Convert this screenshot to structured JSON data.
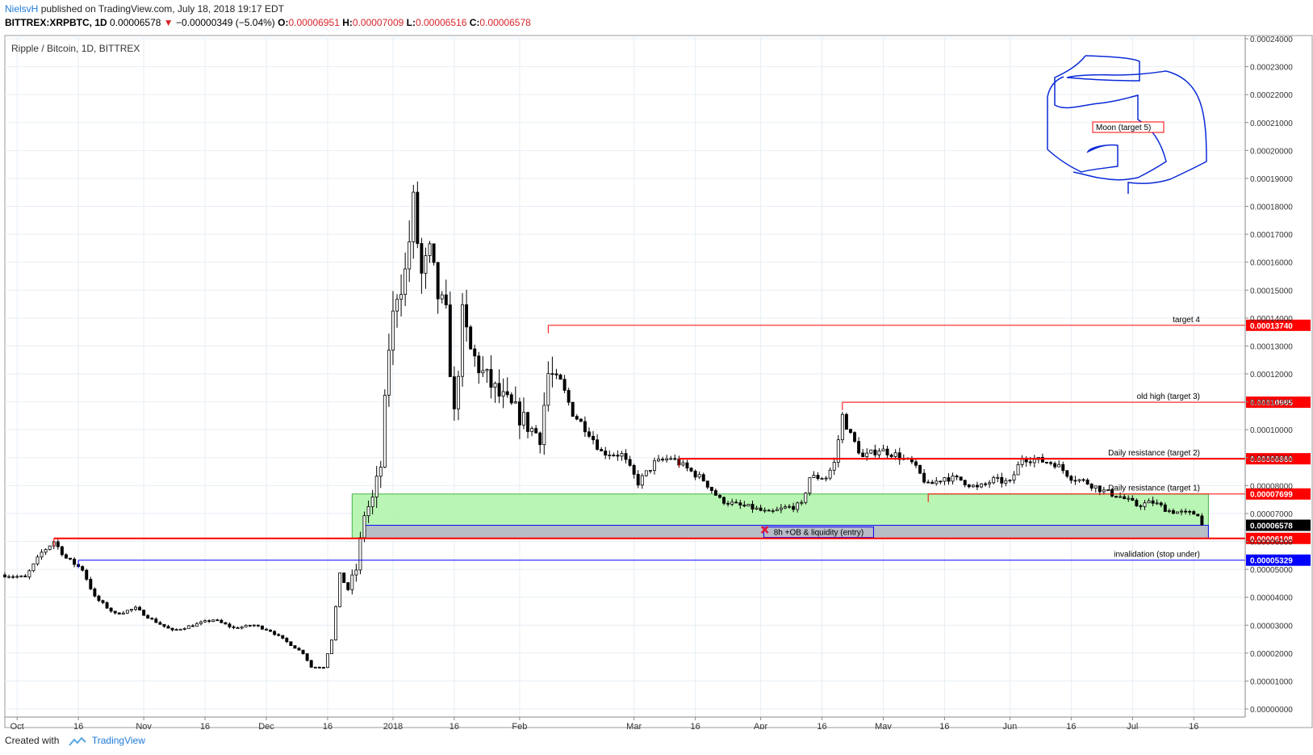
{
  "header": {
    "publisher": "NielsvH",
    "published_text": "published on TradingView.com, July 18, 2018 19:17 EDT",
    "symbol": "BITTREX:XRPBTC, 1D",
    "last": "0.00006578",
    "change": "−0.00000349 (−5.04%)",
    "o_label": "O:",
    "o": "0.00006951",
    "h_label": "H:",
    "h": "0.00007009",
    "l_label": "L:",
    "l": "0.00006516",
    "c_label": "C:",
    "c": "0.00006578"
  },
  "footer": {
    "created_with": "Created with",
    "brand": "TradingView"
  },
  "colors": {
    "up": "#ffffff",
    "down": "#000000",
    "grid": "#e6eef4",
    "red": "#ff0000",
    "blue": "#0000ff",
    "zone_green": "#b6f5b0",
    "zone_gray": "#b8bcc8"
  },
  "chart_data": {
    "type": "candlestick",
    "title": "Ripple / Bitcoin, 1D, BITTREX",
    "ylim": [
      0,
      0.00024
    ],
    "y_ticks": [
      "0.00024000",
      "0.00023000",
      "0.00022000",
      "0.00021000",
      "0.00020000",
      "0.00019000",
      "0.00018000",
      "0.00017000",
      "0.00016000",
      "0.00015000",
      "0.00014000",
      "0.00013000",
      "0.00012000",
      "0.00011000",
      "0.00010000",
      "0.00009000",
      "0.00008000",
      "0.00007000",
      "0.00006000",
      "0.00005000",
      "0.00004000",
      "0.00003000",
      "0.00002000",
      "0.00001000",
      "0.00000000"
    ],
    "y_tick_values": [
      0.00024,
      0.00023,
      0.00022,
      0.00021,
      0.0002,
      0.00019,
      0.00018,
      0.00017,
      0.00016,
      0.00015,
      0.00014,
      0.00013,
      0.00012,
      0.00011,
      0.0001,
      9e-05,
      8e-05,
      7e-05,
      6e-05,
      5e-05,
      4e-05,
      3e-05,
      2e-05,
      1e-05,
      0
    ],
    "x_ticks": [
      {
        "label": "Oct",
        "date": "2017-10-01"
      },
      {
        "label": "16",
        "date": "2017-10-16"
      },
      {
        "label": "Nov",
        "date": "2017-11-01"
      },
      {
        "label": "16",
        "date": "2017-11-16"
      },
      {
        "label": "Dec",
        "date": "2017-12-01"
      },
      {
        "label": "16",
        "date": "2017-12-16"
      },
      {
        "label": "2018",
        "date": "2018-01-01"
      },
      {
        "label": "16",
        "date": "2018-01-16"
      },
      {
        "label": "Feb",
        "date": "2018-02-01"
      },
      {
        "label": "Mar",
        "date": "2018-03-01"
      },
      {
        "label": "16",
        "date": "2018-03-16"
      },
      {
        "label": "Apr",
        "date": "2018-04-01"
      },
      {
        "label": "16",
        "date": "2018-04-16"
      },
      {
        "label": "May",
        "date": "2018-05-01"
      },
      {
        "label": "16",
        "date": "2018-05-16"
      },
      {
        "label": "Jun",
        "date": "2018-06-01"
      },
      {
        "label": "16",
        "date": "2018-06-16"
      },
      {
        "label": "Jul",
        "date": "2018-07-01"
      },
      {
        "label": "16",
        "date": "2018-07-16"
      }
    ],
    "x_start": "2017-09-28",
    "x_end": "2018-07-28",
    "close_path": [
      [
        "2017-09-28",
        4.8e-05
      ],
      [
        "2017-10-03",
        4.7e-05
      ],
      [
        "2017-10-07",
        5.6e-05
      ],
      [
        "2017-10-10",
        6e-05
      ],
      [
        "2017-10-13",
        5.4e-05
      ],
      [
        "2017-10-17",
        5e-05
      ],
      [
        "2017-10-20",
        4e-05
      ],
      [
        "2017-10-25",
        3.4e-05
      ],
      [
        "2017-10-30",
        3.6e-05
      ],
      [
        "2017-11-03",
        3.2e-05
      ],
      [
        "2017-11-08",
        2.8e-05
      ],
      [
        "2017-11-13",
        3e-05
      ],
      [
        "2017-11-18",
        3.2e-05
      ],
      [
        "2017-11-23",
        2.9e-05
      ],
      [
        "2017-11-28",
        3e-05
      ],
      [
        "2017-12-02",
        2.8e-05
      ],
      [
        "2017-12-06",
        2.4e-05
      ],
      [
        "2017-12-10",
        2e-05
      ],
      [
        "2017-12-12",
        1.5e-05
      ],
      [
        "2017-12-15",
        1.5e-05
      ],
      [
        "2017-12-17",
        2.5e-05
      ],
      [
        "2017-12-19",
        4.8e-05
      ],
      [
        "2017-12-21",
        4.3e-05
      ],
      [
        "2017-12-23",
        5e-05
      ],
      [
        "2017-12-25",
        7e-05
      ],
      [
        "2017-12-27",
        7.5e-05
      ],
      [
        "2017-12-29",
        8.7e-05
      ],
      [
        "2017-12-31",
        0.00013
      ],
      [
        "2018-01-02",
        0.00015
      ],
      [
        "2018-01-04",
        0.000156
      ],
      [
        "2018-01-06",
        0.00018
      ],
      [
        "2018-01-08",
        0.000155
      ],
      [
        "2018-01-10",
        0.000162
      ],
      [
        "2018-01-12",
        0.000148
      ],
      [
        "2018-01-14",
        0.00014
      ],
      [
        "2018-01-16",
        0.000105
      ],
      [
        "2018-01-18",
        0.00014
      ],
      [
        "2018-01-20",
        0.000128
      ],
      [
        "2018-01-23",
        0.00012
      ],
      [
        "2018-01-27",
        0.000112
      ],
      [
        "2018-02-01",
        0.000105
      ],
      [
        "2018-02-04",
        0.0001
      ],
      [
        "2018-02-06",
        9.8e-05
      ],
      [
        "2018-02-08",
        0.00012
      ],
      [
        "2018-02-11",
        0.000117
      ],
      [
        "2018-02-14",
        0.000106
      ],
      [
        "2018-02-18",
        9.9e-05
      ],
      [
        "2018-02-21",
        9.2e-05
      ],
      [
        "2018-02-26",
        9.1e-05
      ],
      [
        "2018-03-02",
        8.1e-05
      ],
      [
        "2018-03-06",
        8.8e-05
      ],
      [
        "2018-03-10",
        9e-05
      ],
      [
        "2018-03-14",
        8.6e-05
      ],
      [
        "2018-03-18",
        8.2e-05
      ],
      [
        "2018-03-22",
        7.5e-05
      ],
      [
        "2018-03-26",
        7.3e-05
      ],
      [
        "2018-03-30",
        7.2e-05
      ],
      [
        "2018-04-03",
        7e-05
      ],
      [
        "2018-04-07",
        7.2e-05
      ],
      [
        "2018-04-11",
        7.3e-05
      ],
      [
        "2018-04-13",
        8.3e-05
      ],
      [
        "2018-04-17",
        8.3e-05
      ],
      [
        "2018-04-19",
        8.8e-05
      ],
      [
        "2018-04-21",
        0.000105
      ],
      [
        "2018-04-23",
        9.8e-05
      ],
      [
        "2018-04-26",
        9e-05
      ],
      [
        "2018-04-30",
        9.3e-05
      ],
      [
        "2018-05-04",
        9.1e-05
      ],
      [
        "2018-05-08",
        8.8e-05
      ],
      [
        "2018-05-12",
        8e-05
      ],
      [
        "2018-05-16",
        8.3e-05
      ],
      [
        "2018-05-20",
        8.2e-05
      ],
      [
        "2018-05-24",
        7.9e-05
      ],
      [
        "2018-05-28",
        8.2e-05
      ],
      [
        "2018-06-01",
        8.1e-05
      ],
      [
        "2018-06-04",
        9e-05
      ],
      [
        "2018-06-08",
        8.9e-05
      ],
      [
        "2018-06-12",
        8.8e-05
      ],
      [
        "2018-06-16",
        8.3e-05
      ],
      [
        "2018-06-20",
        8.1e-05
      ],
      [
        "2018-06-24",
        7.8e-05
      ],
      [
        "2018-06-28",
        7.6e-05
      ],
      [
        "2018-07-02",
        7.3e-05
      ],
      [
        "2018-07-06",
        7.4e-05
      ],
      [
        "2018-07-10",
        7.1e-05
      ],
      [
        "2018-07-14",
        7e-05
      ],
      [
        "2018-07-17",
        7e-05
      ],
      [
        "2018-07-18",
        6.58e-05
      ]
    ],
    "levels": [
      {
        "price": 0.0001374,
        "label": "target 4",
        "tag": "0.00013740",
        "color": "#ff0000",
        "from": "2018-02-08"
      },
      {
        "price": 0.00010985,
        "label": "old high (target 3)",
        "tag": "0.00010985",
        "color": "#ff0000",
        "from": "2018-04-21"
      },
      {
        "price": 8.96e-05,
        "label": "Daily resistance (target 2)",
        "tag": "0.00008960",
        "color": "#ff0000",
        "from": "2018-03-12"
      },
      {
        "price": 7.699e-05,
        "label": "Daily resistance (target 1)",
        "tag": "0.00007699",
        "color": "#ff0000",
        "from": "2018-05-12"
      },
      {
        "price": 6.108e-05,
        "label": "",
        "tag": "0.00006108",
        "color": "#ff0000",
        "from": "2017-10-10"
      },
      {
        "price": 5.329e-05,
        "label": "invalidation (stop under)",
        "tag": "0.00005329",
        "color": "#0000ff",
        "from": "2017-10-16"
      }
    ],
    "last_price_tag": "0.00006578",
    "zones": [
      {
        "from": "2017-12-22",
        "to": "2018-07-18",
        "top": 7.699e-05,
        "bottom": 6.108e-05,
        "color": "#b6f5b0"
      },
      {
        "from": "2017-12-25",
        "to": "2018-07-18",
        "top": 6.578e-05,
        "bottom": 6.108e-05,
        "color": "#b8bcc8",
        "label": "8h +OB & liquidity (entry)"
      }
    ],
    "moon_label": "Moon (target 5)",
    "x_marker": {
      "date": "2018-04-02",
      "price": 6.42e-05
    }
  }
}
